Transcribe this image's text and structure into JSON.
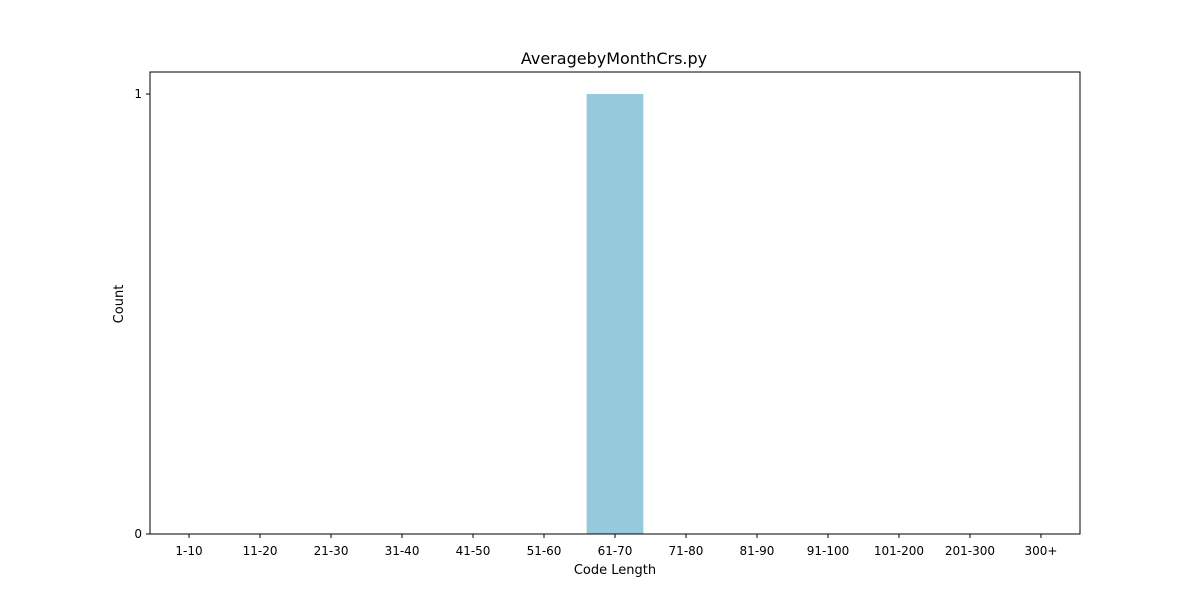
{
  "chart_data": {
    "type": "bar",
    "title": "AveragebyMonthCrs.py",
    "xlabel": "Code Length",
    "ylabel": "Count",
    "categories": [
      "1-10",
      "11-20",
      "21-30",
      "31-40",
      "41-50",
      "51-60",
      "61-70",
      "71-80",
      "81-90",
      "91-100",
      "101-200",
      "201-300",
      "300+"
    ],
    "values": [
      0,
      0,
      0,
      0,
      0,
      0,
      1,
      0,
      0,
      0,
      0,
      0,
      0
    ],
    "yticks": [
      0,
      1
    ],
    "ylim": [
      0,
      1.05
    ],
    "grid": false,
    "bar_color": "#96c9dc"
  }
}
